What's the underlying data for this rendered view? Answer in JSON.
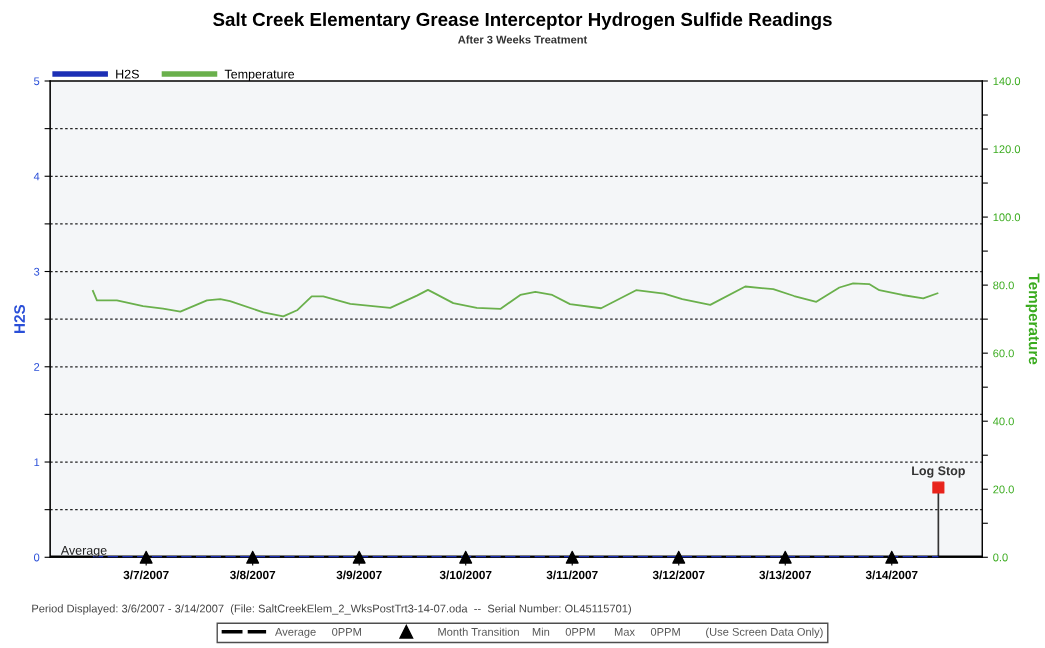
{
  "chart_data": {
    "type": "line",
    "title": "Salt Creek Elementary Grease Interceptor Hydrogen Sulfide Readings",
    "subtitle": "After 3 Weeks Treatment",
    "ylabel": "H2S",
    "y2label": "Temperature",
    "xlim": [
      "2007-03-06T02:22",
      "2007-03-14T20:24"
    ],
    "xticks": [
      {
        "value": "2007-03-07",
        "label": "3/7/2007"
      },
      {
        "value": "2007-03-08",
        "label": "3/8/2007"
      },
      {
        "value": "2007-03-09",
        "label": "3/9/2007"
      },
      {
        "value": "2007-03-10",
        "label": "3/10/2007"
      },
      {
        "value": "2007-03-11",
        "label": "3/11/2007"
      },
      {
        "value": "2007-03-12",
        "label": "3/12/2007"
      },
      {
        "value": "2007-03-13",
        "label": "3/13/2007"
      },
      {
        "value": "2007-03-14",
        "label": "3/14/2007"
      }
    ],
    "ylim": [
      0,
      5
    ],
    "yticks": [
      0,
      {
        "value": 0.5,
        "label": null
      },
      1,
      {
        "value": 1.5,
        "label": null
      },
      2,
      {
        "value": 2.5,
        "label": null
      },
      3,
      {
        "value": 3.5,
        "label": null
      },
      4,
      {
        "value": 4.5,
        "label": null
      },
      5
    ],
    "y2lim": [
      0,
      140
    ],
    "y2ticks": [
      {
        "value": 0,
        "label": "0.0"
      },
      {
        "value": 10,
        "label": null
      },
      {
        "value": 20,
        "label": "20.0"
      },
      {
        "value": 30,
        "label": null
      },
      {
        "value": 40,
        "label": "40.0"
      },
      {
        "value": 50,
        "label": null
      },
      {
        "value": 60,
        "label": "60.0"
      },
      {
        "value": 70,
        "label": null
      },
      {
        "value": 80,
        "label": "80.0"
      },
      {
        "value": 90,
        "label": null
      },
      {
        "value": 100,
        "label": "100.0"
      },
      {
        "value": 110,
        "label": null
      },
      {
        "value": 120,
        "label": "120.0"
      },
      {
        "value": 130,
        "label": null
      },
      {
        "value": 140,
        "label": "140.0"
      }
    ],
    "grid": "y",
    "legend": "top left",
    "line_style": "solid",
    "series": [
      {
        "name": "H2S",
        "color": "#1c2fb5",
        "x": [
          "2007-03-06T12:00",
          "2007-03-14T10:30"
        ],
        "values": [
          0,
          0
        ],
        "line_style": "dashed"
      },
      {
        "name": "Temperature",
        "color": "#6ab04c",
        "axis": "y2",
        "x": [
          "2007-03-06T12:00",
          "2007-03-06T12:54",
          "2007-03-06T17:24",
          "2007-03-06T23:18",
          "2007-03-07T03:48",
          "2007-03-07T07:42",
          "2007-03-07T13:42",
          "2007-03-07T16:42",
          "2007-03-07T18:54",
          "2007-03-08T02:24",
          "2007-03-08T06:54",
          "2007-03-08T10:00",
          "2007-03-08T13:18",
          "2007-03-08T15:54",
          "2007-03-08T22:00",
          "2007-03-09T07:00",
          "2007-03-09T13:00",
          "2007-03-09T15:30",
          "2007-03-09T16:42",
          "2007-03-09T21:12",
          "2007-03-10T02:30",
          "2007-03-10T07:48",
          "2007-03-10T12:18",
          "2007-03-10T15:42",
          "2007-03-10T19:30",
          "2007-03-10T23:30",
          "2007-03-11T06:30",
          "2007-03-11T14:24",
          "2007-03-11T20:42",
          "2007-03-12T00:48",
          "2007-03-12T07:06",
          "2007-03-12T15:00",
          "2007-03-12T21:18",
          "2007-03-13T02:00",
          "2007-03-13T07:00",
          "2007-03-13T12:12",
          "2007-03-13T15:18",
          "2007-03-13T18:54",
          "2007-03-13T21:12",
          "2007-03-14T02:24",
          "2007-03-14T07:06",
          "2007-03-14T10:18"
        ],
        "values": [
          78.3,
          75.5,
          75.5,
          73.8,
          73.1,
          72.2,
          75.5,
          75.9,
          75.3,
          72.0,
          70.8,
          72.6,
          76.7,
          76.7,
          74.5,
          73.3,
          76.9,
          78.6,
          77.8,
          74.7,
          73.3,
          73.0,
          77.1,
          78.0,
          77.1,
          74.4,
          73.2,
          78.5,
          77.5,
          75.9,
          74.2,
          79.6,
          78.8,
          76.8,
          75.1,
          79.3,
          80.5,
          80.3,
          78.5,
          77.1,
          76.1,
          77.6
        ]
      },
      {
        "type": "scatter",
        "color": "#000000",
        "marker": "triangle",
        "x": [
          "2007-03-07",
          "2007-03-08",
          "2007-03-09",
          "2007-03-10",
          "2007-03-11",
          "2007-03-12",
          "2007-03-13",
          "2007-03-14"
        ],
        "values": [
          0,
          0,
          0,
          0,
          0,
          0,
          0,
          0
        ]
      },
      {
        "type": "lollipop",
        "name": "Log Stop",
        "color": "#e8231b",
        "marker": "square",
        "axis": "y2",
        "x": [
          "2007-03-14T10:30"
        ],
        "values": [
          20.5
        ]
      }
    ],
    "ref_lines": [
      {
        "axis": "y",
        "value": 0,
        "label": "Average",
        "color": "#000000"
      }
    ],
    "annotations": [
      "Period Displayed: 3/6/2007 - 3/14/2007  (File: SaltCreekElem_2_WksPostTrt3-14-07.oda  --  Serial Number: OL45115701)",
      "Average     0PPM",
      "Month Transition    Min     0PPM      Max     0PPM        (Use Screen Data Only)"
    ]
  }
}
